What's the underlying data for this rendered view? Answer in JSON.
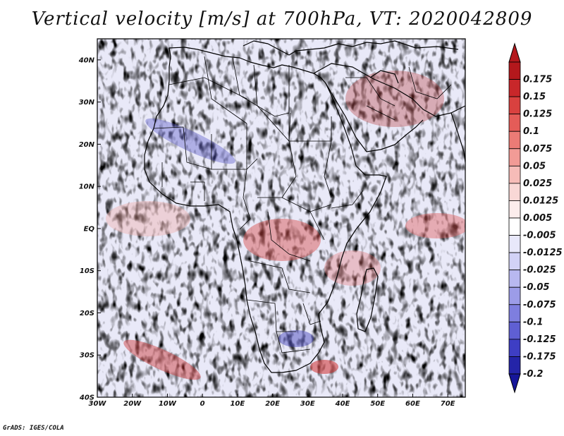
{
  "title": "Vertical velocity [m/s] at 700hPa, VT: 2020042809",
  "credit": "GrADS: IGES/COLA",
  "map": {
    "lon_range": [
      -30,
      75
    ],
    "lat_range": [
      -40,
      45
    ],
    "lat_ticks": [
      {
        "value": 40,
        "label": "40N"
      },
      {
        "value": 30,
        "label": "30N"
      },
      {
        "value": 20,
        "label": "20N"
      },
      {
        "value": 10,
        "label": "10N"
      },
      {
        "value": 0,
        "label": "EQ"
      },
      {
        "value": -10,
        "label": "10S"
      },
      {
        "value": -20,
        "label": "20S"
      },
      {
        "value": -30,
        "label": "30S"
      },
      {
        "value": -40,
        "label": "40S"
      }
    ],
    "lon_ticks": [
      {
        "value": -30,
        "label": "30W"
      },
      {
        "value": -20,
        "label": "20W"
      },
      {
        "value": -10,
        "label": "10W"
      },
      {
        "value": 0,
        "label": "0"
      },
      {
        "value": 10,
        "label": "10E"
      },
      {
        "value": 20,
        "label": "20E"
      },
      {
        "value": 30,
        "label": "30E"
      },
      {
        "value": 40,
        "label": "40E"
      },
      {
        "value": 50,
        "label": "50E"
      },
      {
        "value": 60,
        "label": "60E"
      },
      {
        "value": 70,
        "label": "70E"
      }
    ]
  },
  "colorbar": {
    "levels": [
      {
        "label": "0.175",
        "color": "#b4181c"
      },
      {
        "label": "0.15",
        "color": "#c8272a"
      },
      {
        "label": "0.125",
        "color": "#d9413f"
      },
      {
        "label": "0.1",
        "color": "#e45c58"
      },
      {
        "label": "0.075",
        "color": "#ec7b76"
      },
      {
        "label": "0.05",
        "color": "#f29b96"
      },
      {
        "label": "0.025",
        "color": "#f6bcb8"
      },
      {
        "label": "0.0125",
        "color": "#f9d8d6"
      },
      {
        "label": "0.005",
        "color": "#fcedec"
      },
      {
        "label": "-0.005",
        "color": "#ffffff"
      },
      {
        "label": "-0.0125",
        "color": "#e8e8fa"
      },
      {
        "label": "-0.025",
        "color": "#d2d2f6"
      },
      {
        "label": "-0.05",
        "color": "#b8b8f0"
      },
      {
        "label": "-0.075",
        "color": "#9c9ce8"
      },
      {
        "label": "-0.1",
        "color": "#7e7edf"
      },
      {
        "label": "-0.125",
        "color": "#5f5fd3"
      },
      {
        "label": "-0.175",
        "color": "#3e3ec4"
      },
      {
        "label": "-0.2",
        "color": "#2424a8"
      }
    ],
    "bottom_color": "#16169a"
  }
}
